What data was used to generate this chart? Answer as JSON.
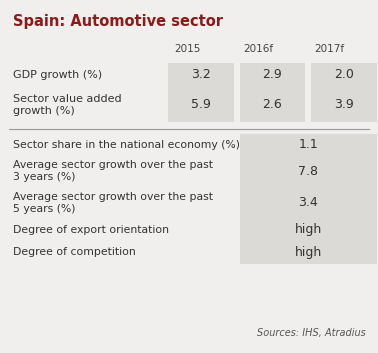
{
  "title": "Spain: Automotive sector",
  "background_color": "#f0efed",
  "title_color": "#8b1a1a",
  "header_cols": [
    "2015",
    "2016f",
    "2017f"
  ],
  "top_rows": [
    {
      "label": "GDP growth (%)",
      "values": [
        "3.2",
        "2.9",
        "2.0"
      ]
    },
    {
      "label": "Sector value added\ngrowth (%)",
      "values": [
        "5.9",
        "2.6",
        "3.9"
      ]
    }
  ],
  "bottom_rows": [
    {
      "label": "Sector share in the national economy (%)",
      "value": "1.1"
    },
    {
      "label": "Average sector growth over the past\n3 years (%)",
      "value": "7.8"
    },
    {
      "label": "Average sector growth over the past\n5 years (%)",
      "value": "3.4"
    },
    {
      "label": "Degree of export orientation",
      "value": "high"
    },
    {
      "label": "Degree of competition",
      "value": "high"
    }
  ],
  "cell_bg": "#dcdad7",
  "source_text": "Sources: IHS, Atradius",
  "source_color": "#555555"
}
